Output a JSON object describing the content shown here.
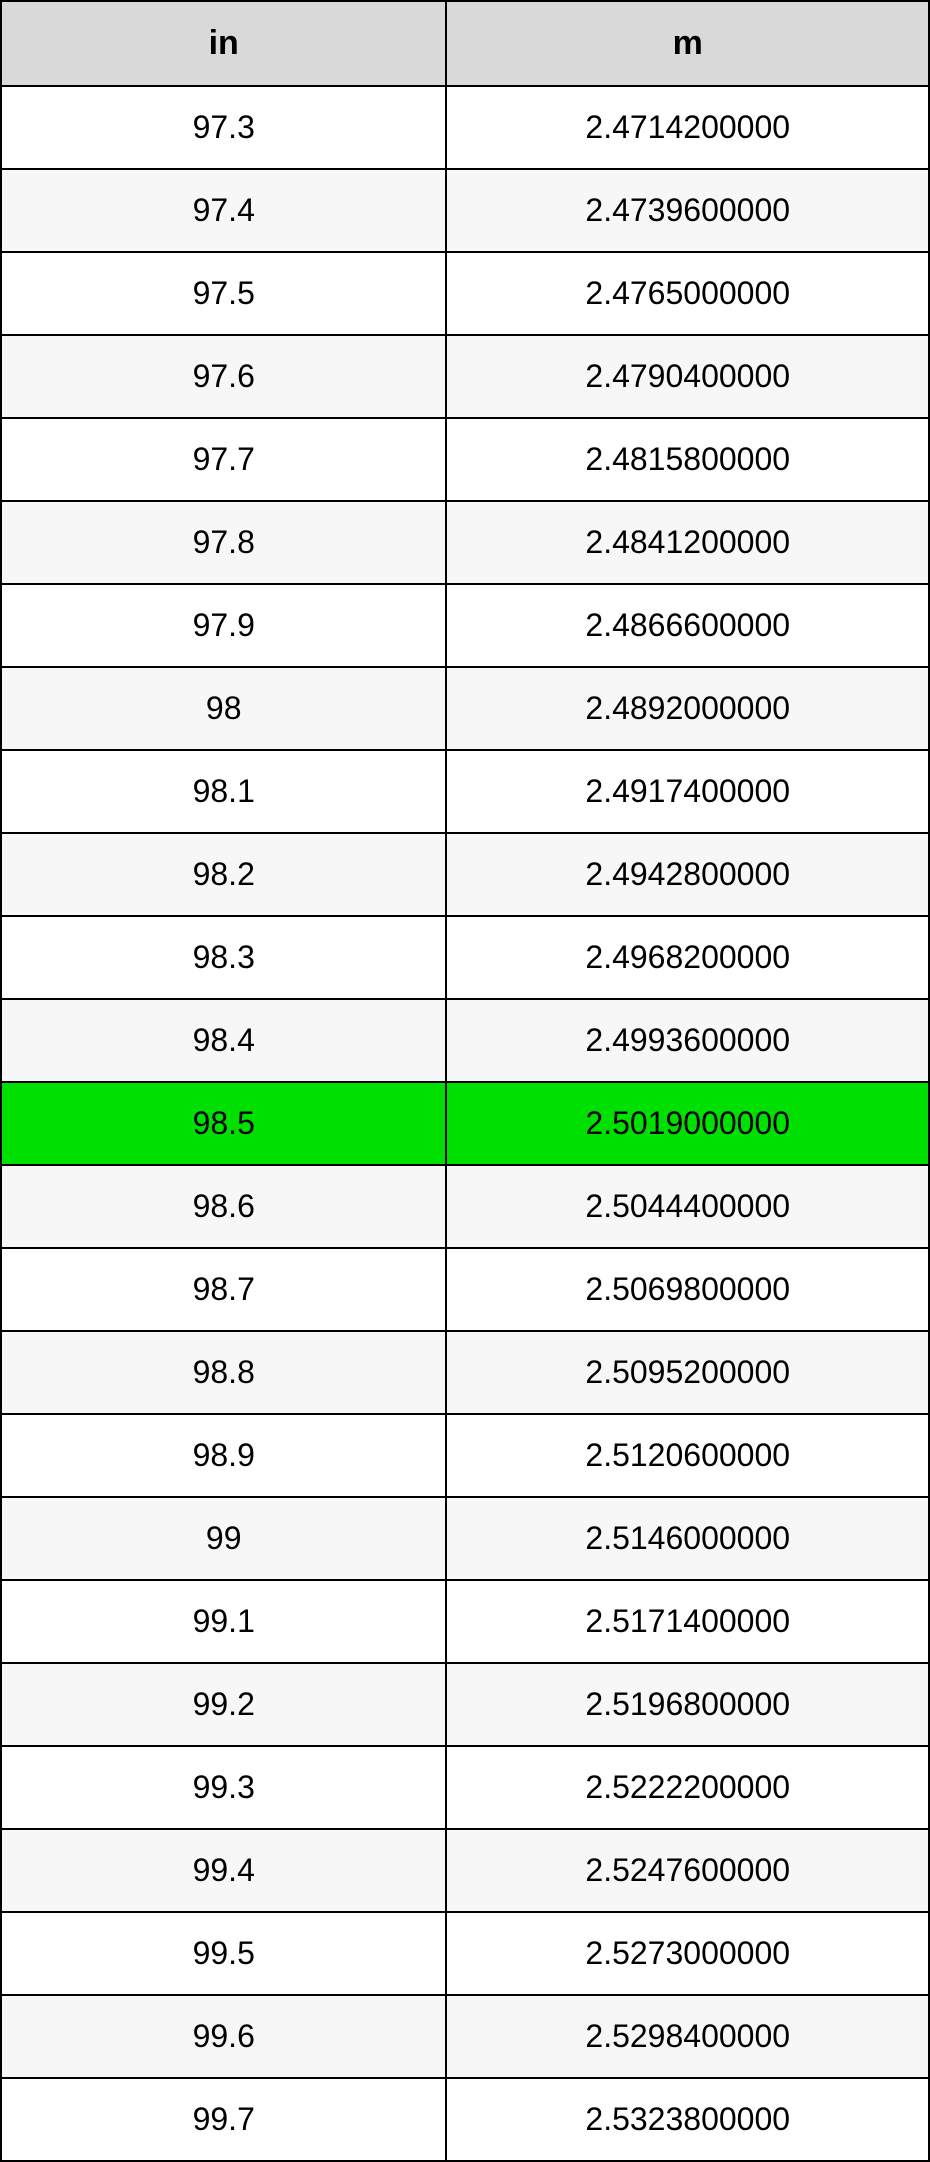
{
  "table": {
    "type": "table",
    "header_bg": "#d9d9d9",
    "row_alt_bg": "#f7f7f7",
    "row_bg": "#ffffff",
    "highlight_bg": "#00e000",
    "border_color": "#000000",
    "text_color": "#000000",
    "font_size_header": 34,
    "font_size_cell": 32,
    "columns": [
      {
        "key": "in",
        "label": "in",
        "width_pct": 48
      },
      {
        "key": "m",
        "label": "m",
        "width_pct": 52
      }
    ],
    "highlight_index": 12,
    "rows": [
      {
        "in": "97.3",
        "m": "2.4714200000"
      },
      {
        "in": "97.4",
        "m": "2.4739600000"
      },
      {
        "in": "97.5",
        "m": "2.4765000000"
      },
      {
        "in": "97.6",
        "m": "2.4790400000"
      },
      {
        "in": "97.7",
        "m": "2.4815800000"
      },
      {
        "in": "97.8",
        "m": "2.4841200000"
      },
      {
        "in": "97.9",
        "m": "2.4866600000"
      },
      {
        "in": "98",
        "m": "2.4892000000"
      },
      {
        "in": "98.1",
        "m": "2.4917400000"
      },
      {
        "in": "98.2",
        "m": "2.4942800000"
      },
      {
        "in": "98.3",
        "m": "2.4968200000"
      },
      {
        "in": "98.4",
        "m": "2.4993600000"
      },
      {
        "in": "98.5",
        "m": "2.5019000000"
      },
      {
        "in": "98.6",
        "m": "2.5044400000"
      },
      {
        "in": "98.7",
        "m": "2.5069800000"
      },
      {
        "in": "98.8",
        "m": "2.5095200000"
      },
      {
        "in": "98.9",
        "m": "2.5120600000"
      },
      {
        "in": "99",
        "m": "2.5146000000"
      },
      {
        "in": "99.1",
        "m": "2.5171400000"
      },
      {
        "in": "99.2",
        "m": "2.5196800000"
      },
      {
        "in": "99.3",
        "m": "2.5222200000"
      },
      {
        "in": "99.4",
        "m": "2.5247600000"
      },
      {
        "in": "99.5",
        "m": "2.5273000000"
      },
      {
        "in": "99.6",
        "m": "2.5298400000"
      },
      {
        "in": "99.7",
        "m": "2.5323800000"
      }
    ]
  }
}
